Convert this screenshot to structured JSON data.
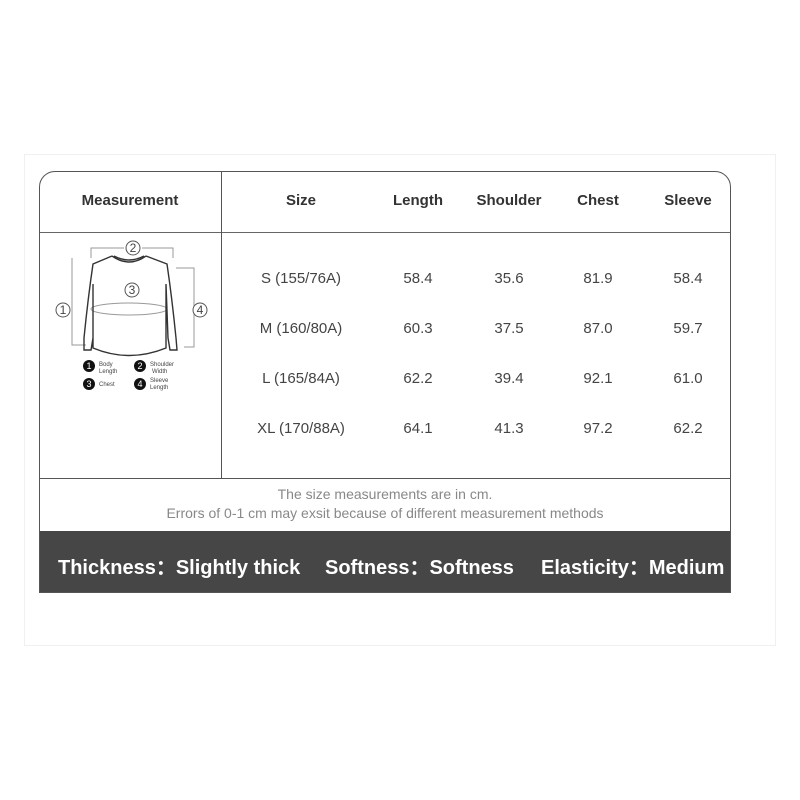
{
  "table": {
    "headers": [
      "Measurement",
      "Size",
      "Length",
      "Shoulder",
      "Chest",
      "Sleeve"
    ],
    "rows": [
      [
        "S (155/76A)",
        "58.4",
        "35.6",
        "81.9",
        "58.4"
      ],
      [
        "M (160/80A)",
        "60.3",
        "37.5",
        "87.0",
        "59.7"
      ],
      [
        "L (165/84A)",
        "62.2",
        "39.4",
        "92.1",
        "61.0"
      ],
      [
        "XL (170/88A)",
        "64.1",
        "41.3",
        "97.2",
        "62.2"
      ]
    ]
  },
  "diagram": {
    "markers": [
      "1",
      "2",
      "3",
      "4"
    ],
    "legend": [
      {
        "num": "1",
        "label": "Body Length"
      },
      {
        "num": "2",
        "label": "Shoulder Width"
      },
      {
        "num": "3",
        "label": "Chest"
      },
      {
        "num": "4",
        "label": "Sleeve Length"
      }
    ]
  },
  "note": {
    "line1": "The size measurements are in cm.",
    "line2": "Errors of 0-1 cm may exsit because of different measurement methods"
  },
  "attributes": [
    {
      "label": "Thickness：",
      "value": "Slightly thick"
    },
    {
      "label": "Softness：",
      "value": "Softness"
    },
    {
      "label": "Elasticity：",
      "value": "Medium"
    }
  ],
  "colors": {
    "bar": "#464646",
    "border": "#555555",
    "note": "#888888"
  }
}
